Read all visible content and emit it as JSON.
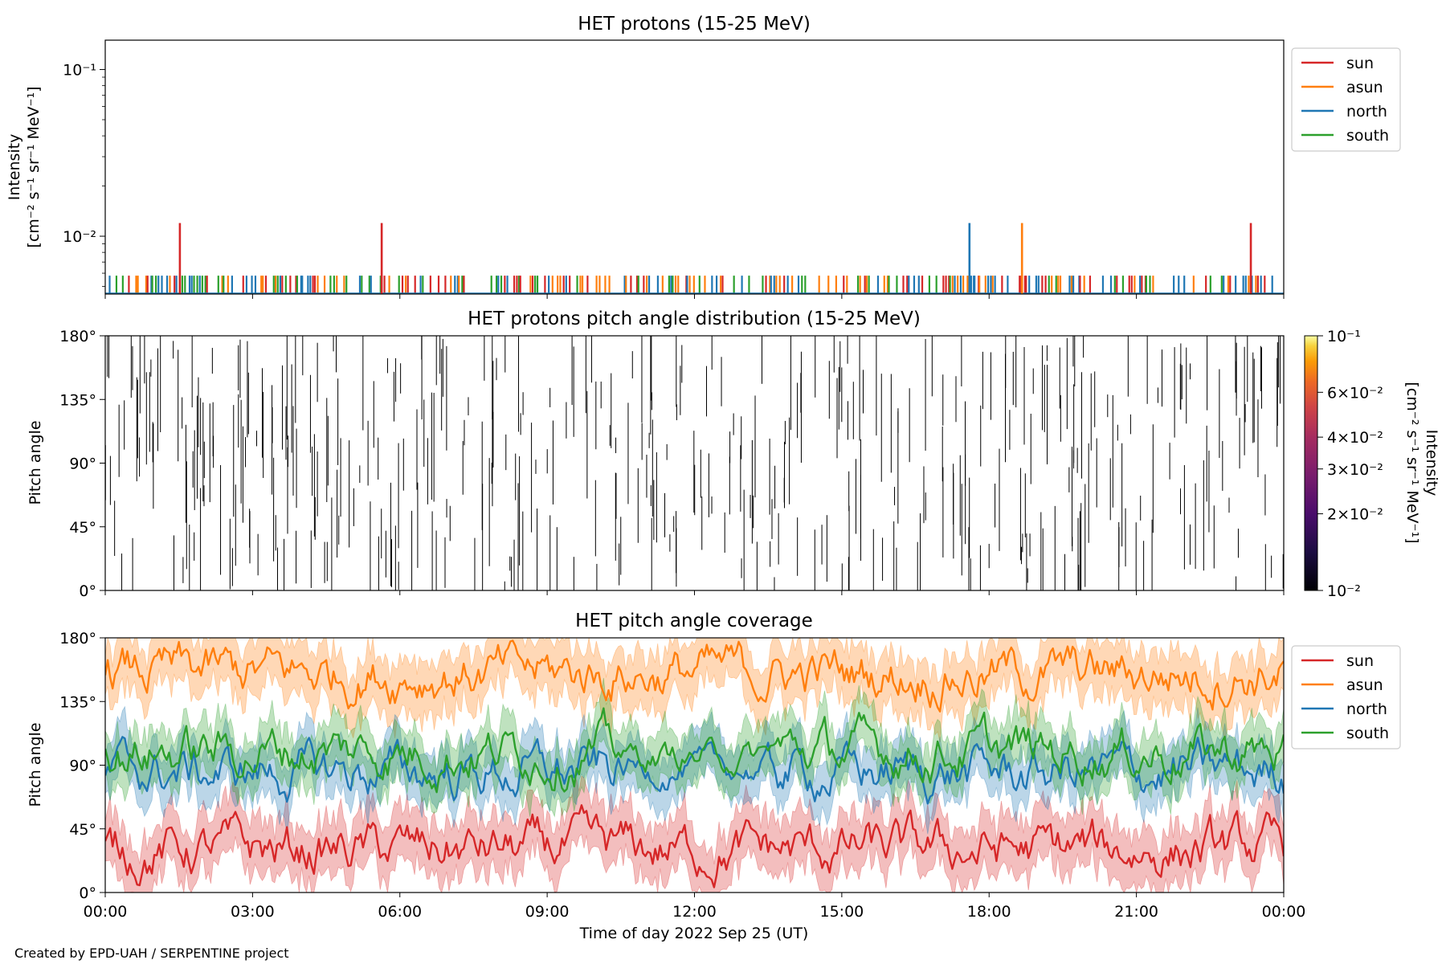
{
  "footer": "Created by EPD-UAH / SERPENTINE project",
  "time_ticks": [
    "00:00",
    "03:00",
    "06:00",
    "09:00",
    "12:00",
    "15:00",
    "18:00",
    "21:00",
    "00:00"
  ],
  "colors": {
    "sun": "#d62728",
    "asun": "#ff7f0e",
    "north": "#1f77b4",
    "south": "#2ca02c"
  },
  "legend": [
    "sun",
    "asun",
    "north",
    "south"
  ],
  "chart_data": [
    {
      "type": "line",
      "title": "HET protons (15-25 MeV)",
      "ylabel_line1": "Intensity",
      "ylabel_line2": "[cm⁻² s⁻¹ sr⁻¹ MeV⁻¹]",
      "yscale": "log",
      "ylim": [
        0.0045,
        0.15
      ],
      "ytick_labels": [
        {
          "value": 0.1,
          "label": "10⁻¹"
        },
        {
          "value": 0.01,
          "label": "10⁻²"
        }
      ],
      "x_hours": [
        0,
        24
      ],
      "baseline": 0.0058,
      "spike_value": 0.012,
      "spikes": [
        {
          "series": "sun",
          "hour": 1.52
        },
        {
          "series": "sun",
          "hour": 5.63
        },
        {
          "series": "north",
          "hour": 17.6
        },
        {
          "series": "asun",
          "hour": 18.67
        },
        {
          "series": "sun",
          "hour": 23.33
        }
      ],
      "legend_placement": "outside-right"
    },
    {
      "type": "heatmap",
      "title": "HET protons pitch angle distribution (15-25 MeV)",
      "ylabel": "Pitch angle",
      "ylim": [
        0,
        180
      ],
      "ytick_labels": [
        "0°",
        "45°",
        "90°",
        "135°",
        "180°"
      ],
      "colorbar_label": "Intensity [cm⁻² s⁻¹ sr⁻¹ MeV⁻¹]",
      "colorbar_label_line1": "Intensity",
      "colorbar_label_line2": "[cm⁻² s⁻¹ sr⁻¹ MeV⁻¹]",
      "colorbar_scale": "log",
      "colorbar_range": [
        0.01,
        0.1
      ],
      "colorbar_ticks": [
        {
          "value": 0.1,
          "label": "10⁻¹"
        },
        {
          "value": 0.06,
          "label": "6×10⁻²"
        },
        {
          "value": 0.04,
          "label": "4×10⁻²"
        },
        {
          "value": 0.03,
          "label": "3×10⁻²"
        },
        {
          "value": 0.02,
          "label": "2×10⁻²"
        },
        {
          "value": 0.01,
          "label": "10⁻²"
        }
      ],
      "colormap": "inferno"
    },
    {
      "type": "line",
      "title": "HET pitch angle coverage",
      "ylabel": "Pitch angle",
      "xlabel": "Time of day 2022 Sep 25 (UT)",
      "ylim": [
        0,
        180
      ],
      "ytick_labels": [
        "0°",
        "45°",
        "90°",
        "135°",
        "180°"
      ],
      "series": [
        {
          "name": "sun",
          "mean": 30,
          "band": 20
        },
        {
          "name": "asun",
          "mean": 155,
          "band": 20
        },
        {
          "name": "north",
          "mean": 85,
          "band": 18
        },
        {
          "name": "south",
          "mean": 100,
          "band": 18
        }
      ],
      "legend_placement": "outside-right"
    }
  ]
}
